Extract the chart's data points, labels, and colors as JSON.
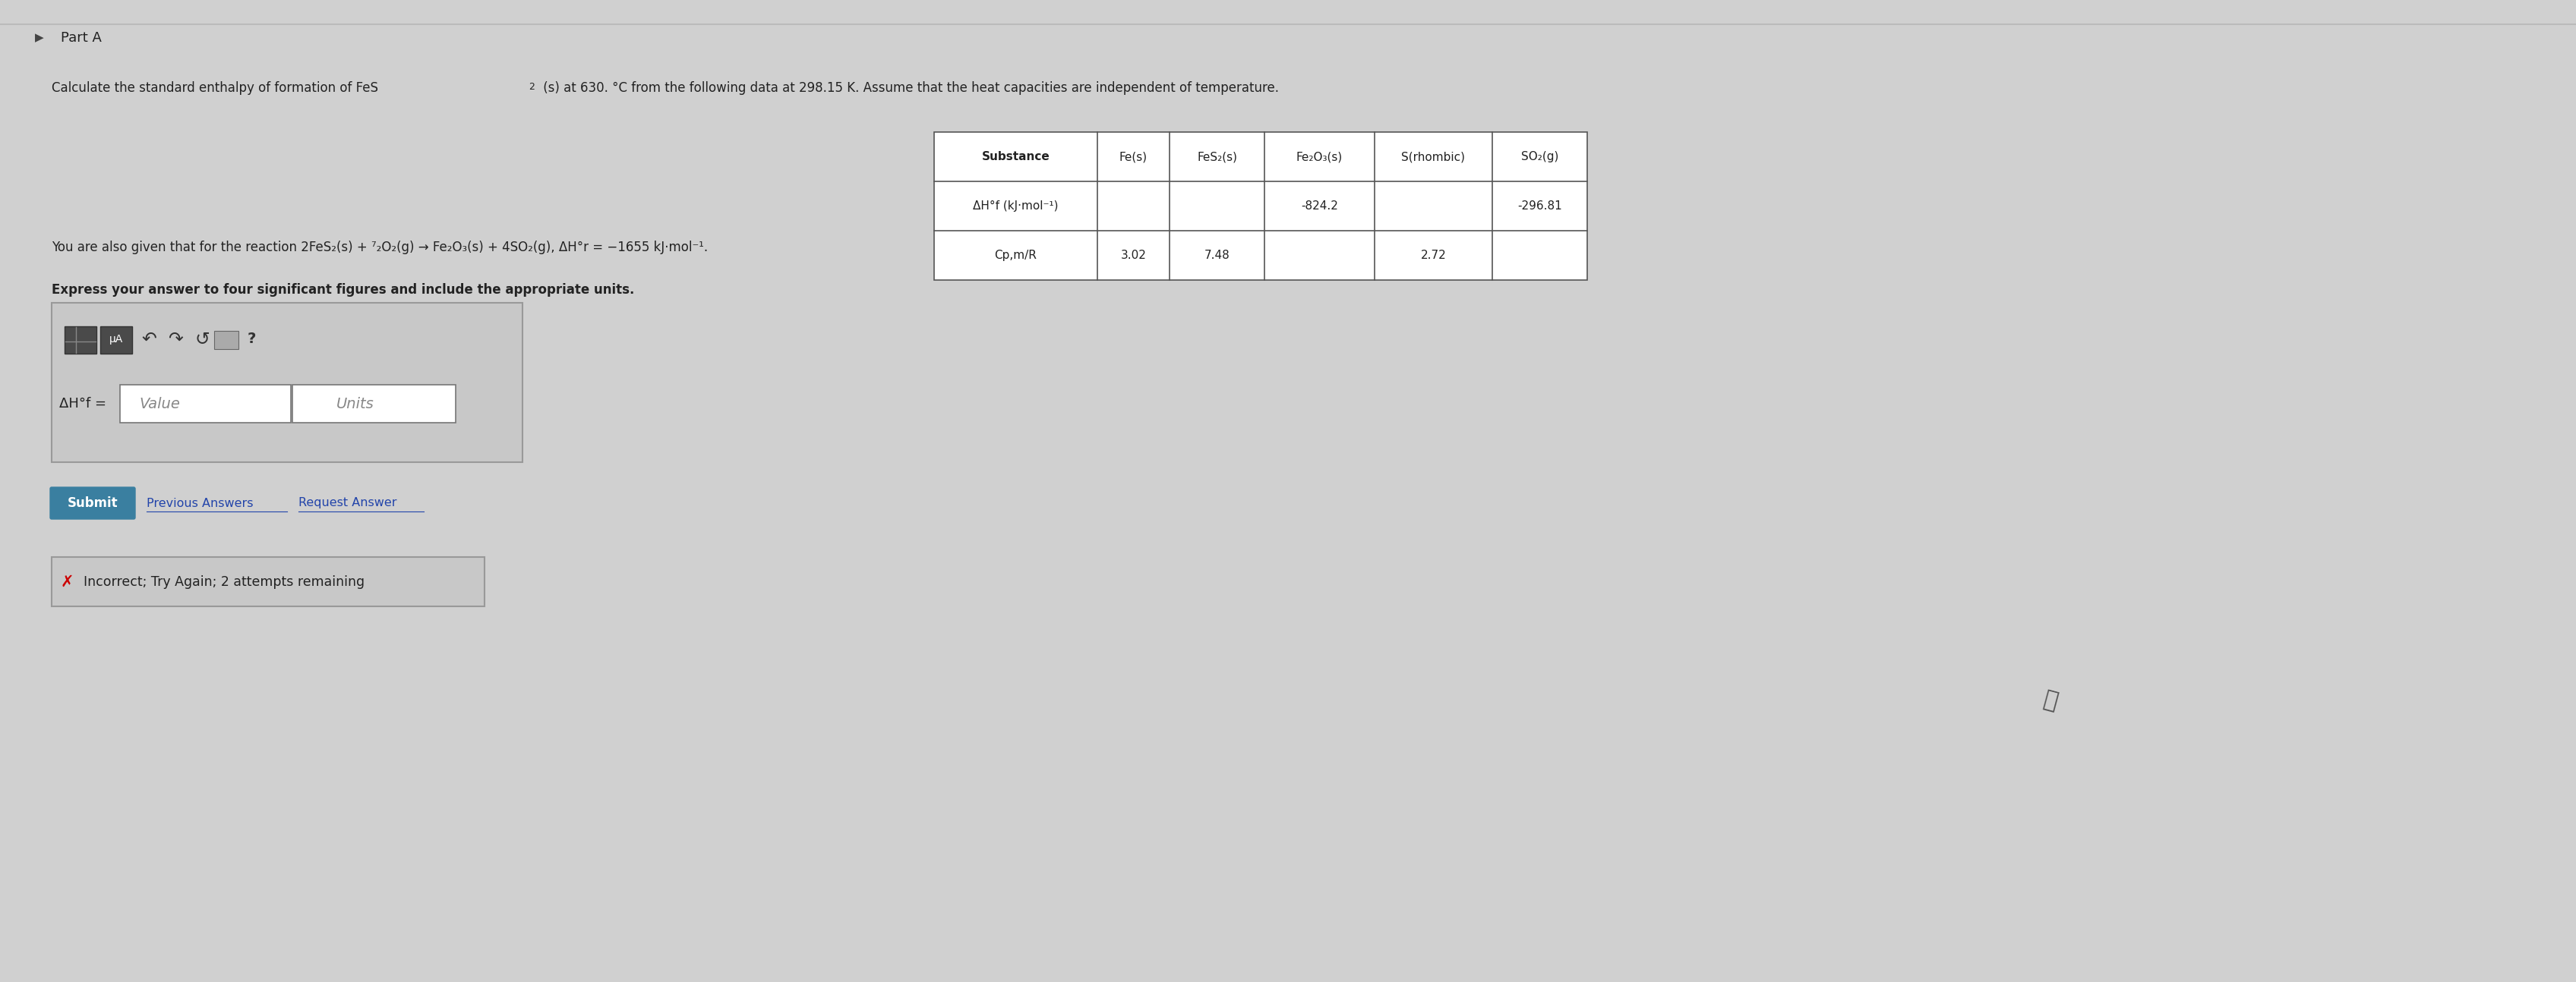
{
  "bg_color": "#d0d0d0",
  "part_a_label": "Part A",
  "problem_text_line1": "Calculate the standard enthalpy of formation of FeS",
  "subscript_2": "2",
  "problem_text_line1b": " (s) at 630. °C from the following data at 298.15 K. Assume that the heat capacities are independent of temperature.",
  "table_header": [
    "Substance",
    "Fe(s)",
    "FeS₂(s)",
    "Fe₂O₃(s)",
    "S(rhombic)",
    "SO₂(g)"
  ],
  "row1_label": "ΔH°f (kJ·mol⁻¹)",
  "row1_values": [
    "",
    "",
    "-824.2",
    "",
    "-296.81"
  ],
  "row2_label": "Cp,m/R",
  "row2_values": [
    "3.02",
    "7.48",
    "",
    "2.72",
    ""
  ],
  "reaction_text": "You are also given that for the reaction 2FeS₂(s) + ⁷₂O₂(g) → Fe₂O₃(s) + 4SO₂(g), ΔH°r = −1655 kJ·mol⁻¹.",
  "express_text": "Express your answer to four significant figures and include the appropriate units.",
  "delta_Hf_label": "ΔH°f =",
  "value_placeholder": "Value",
  "units_placeholder": "Units",
  "submit_text": "Submit",
  "submit_bg": "#3a7fa0",
  "prev_answers_text": "Previous Answers",
  "request_answer_text": "Request Answer",
  "incorrect_text": "Incorrect; Try Again; 2 attempts remaining",
  "incorrect_x_color": "#cc0000"
}
